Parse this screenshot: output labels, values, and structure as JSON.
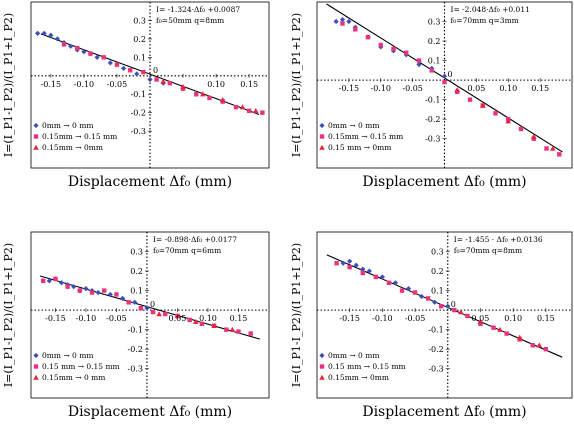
{
  "colors": {
    "series_blue": "#3f4fb8",
    "series_magenta": "#e8337f",
    "series_red": "#e8243a",
    "fit_line": "#000000",
    "axes": "#000000"
  },
  "chart_data": [
    {
      "type": "scatter",
      "panel": "top-left",
      "xlabel": "Displacement Δf₀ (mm)",
      "ylabel": "I=(I_P1-I_P2)/(I_P1+I_P2)",
      "xlim": [
        -0.18,
        0.18
      ],
      "ylim": [
        -0.5,
        0.4
      ],
      "x_ticks": [
        -0.15,
        -0.1,
        -0.05,
        0.05,
        0.1,
        0.15
      ],
      "x_tick_labels": [
        "-0.15",
        "-0.10",
        "-0.05",
        "",
        "0.10",
        "0.15"
      ],
      "y_ticks": [
        0.3,
        0.2,
        0.1,
        -0.1,
        -0.2,
        -0.3
      ],
      "y_tick_labels": [
        "0.3",
        "0.2",
        "0.1",
        "-0.1",
        "-0.2",
        "-0.3"
      ],
      "annotation": [
        "I= -1.324·Δf₀ +0.0087",
        "f₀=50mm   q=8mm"
      ],
      "zero_label": "0",
      "legend": [
        "0mm  → 0 mm",
        "0.15mm → 0.15 mm",
        "0.15mm → 0mm"
      ],
      "fit": {
        "slope": -1.324,
        "intercept": 0.0087
      },
      "series": [
        {
          "name": "0mm  → 0 mm",
          "marker": "diamond",
          "color": "#3f4fb8",
          "x": [
            -0.17,
            -0.16,
            -0.15,
            -0.14,
            -0.13,
            -0.12,
            -0.11,
            -0.1,
            -0.09,
            -0.08,
            -0.06,
            -0.04,
            -0.02,
            0.0,
            0.02
          ],
          "y": [
            0.23,
            0.23,
            0.22,
            0.2,
            0.18,
            0.16,
            0.14,
            0.13,
            0.12,
            0.1,
            0.07,
            0.04,
            0.01,
            -0.02,
            -0.04
          ]
        },
        {
          "name": "0.15mm → 0.15 mm",
          "marker": "square",
          "color": "#e8337f",
          "x": [
            -0.13,
            -0.11,
            -0.09,
            -0.07,
            -0.05,
            -0.03,
            -0.01,
            0.01,
            0.03,
            0.05,
            0.07,
            0.09,
            0.11,
            0.13,
            0.15,
            0.17
          ],
          "y": [
            0.17,
            0.15,
            0.12,
            0.1,
            0.06,
            0.03,
            0.02,
            -0.02,
            -0.04,
            -0.07,
            -0.1,
            -0.12,
            -0.14,
            -0.17,
            -0.19,
            -0.2
          ]
        },
        {
          "name": "0.15mm → 0mm",
          "marker": "triangle",
          "color": "#e8243a",
          "x": [
            0.02,
            0.05,
            0.08,
            0.11,
            0.14,
            0.16
          ],
          "y": [
            -0.03,
            -0.06,
            -0.1,
            -0.13,
            -0.17,
            -0.19
          ]
        }
      ]
    },
    {
      "type": "scatter",
      "panel": "top-right",
      "xlabel": "Displacement Δf₀ (mm)",
      "ylabel": "I=(I_P1-I_P2)/(I_P1+I_P2)",
      "xlim": [
        -0.2,
        0.2
      ],
      "ylim": [
        -0.45,
        0.4
      ],
      "x_ticks": [
        -0.15,
        -0.1,
        -0.05,
        0.05,
        0.1,
        0.15
      ],
      "x_tick_labels": [
        "-0.15",
        "-0.10",
        "-0.05",
        "0.05",
        "0.10",
        "0.15"
      ],
      "y_ticks": [
        0.3,
        0.2,
        0.1,
        -0.1,
        -0.2,
        -0.3
      ],
      "y_tick_labels": [
        "0.3",
        "0.2",
        "0.1",
        "-0.1",
        "-0.2",
        "-0.3"
      ],
      "annotation": [
        "I= -2.048·Δf₀ +0.011",
        "f₀=70mm  q=3mm"
      ],
      "zero_label": "0",
      "legend": [
        "0mm  → 0 mm",
        "0.15mm → 0.15 mm",
        "0.15 mm → 0mm"
      ],
      "fit": {
        "slope": -2.048,
        "intercept": 0.011
      },
      "series": [
        {
          "name": "0mm  → 0 mm",
          "marker": "diamond",
          "color": "#3f4fb8",
          "x": [
            -0.17,
            -0.16,
            -0.15,
            -0.14,
            -0.12,
            -0.1,
            -0.08,
            -0.06,
            -0.04,
            -0.02,
            0.0
          ],
          "y": [
            0.3,
            0.31,
            0.3,
            0.27,
            0.22,
            0.17,
            0.15,
            0.13,
            0.08,
            0.06,
            0.02
          ]
        },
        {
          "name": "0.15mm → 0.15 mm",
          "marker": "square",
          "color": "#e8337f",
          "x": [
            -0.16,
            -0.14,
            -0.12,
            -0.1,
            -0.08,
            -0.06,
            -0.04,
            -0.02,
            0.0,
            0.02,
            0.04,
            0.06,
            0.08,
            0.1,
            0.12,
            0.14,
            0.16,
            0.18
          ],
          "y": [
            0.29,
            0.26,
            0.22,
            0.18,
            0.16,
            0.14,
            0.1,
            0.05,
            -0.01,
            -0.06,
            -0.1,
            -0.13,
            -0.17,
            -0.2,
            -0.25,
            -0.3,
            -0.35,
            -0.38
          ]
        },
        {
          "name": "0.15 mm → 0mm",
          "marker": "triangle",
          "color": "#e8243a",
          "x": [
            0.02,
            0.06,
            0.1,
            0.14,
            0.17
          ],
          "y": [
            -0.05,
            -0.13,
            -0.21,
            -0.29,
            -0.35
          ]
        }
      ]
    },
    {
      "type": "scatter",
      "panel": "bottom-left",
      "xlabel": "Displacement Δf₀ (mm)",
      "ylabel": "I=(I_P1-I_P2)/(I_P1+I_P2)",
      "xlim": [
        -0.19,
        0.2
      ],
      "ylim": [
        -0.45,
        0.4
      ],
      "x_ticks": [
        -0.15,
        -0.1,
        -0.05,
        0.05,
        0.1,
        0.15
      ],
      "x_tick_labels": [
        "-0.15",
        "-0.10",
        "-0.05",
        "0.05",
        "0.10",
        "0.15"
      ],
      "y_ticks": [
        0.3,
        0.2,
        0.1,
        -0.1,
        -0.2,
        -0.3
      ],
      "y_tick_labels": [
        "0.3",
        "0.2",
        "0.1",
        "-0.1",
        "-0.2",
        "-0.3"
      ],
      "annotation": [
        "I= -0.898·Δf₀ +0.0177",
        "f₀=70mm   q=6mm"
      ],
      "zero_label": "0",
      "legend": [
        "0mm      → 0 mm",
        "0.15 mm → 0.15 mm",
        "0.15mm → 0 mm"
      ],
      "fit": {
        "slope": -0.898,
        "intercept": 0.0177
      },
      "series": [
        {
          "name": "0mm      → 0 mm",
          "marker": "diamond",
          "color": "#3f4fb8",
          "x": [
            -0.16,
            -0.15,
            -0.14,
            -0.13,
            -0.12,
            -0.11,
            -0.1,
            -0.09,
            -0.08,
            -0.06,
            -0.04,
            -0.02,
            0.0
          ],
          "y": [
            0.15,
            0.16,
            0.14,
            0.13,
            0.12,
            0.1,
            0.11,
            0.1,
            0.09,
            0.08,
            0.06,
            0.04,
            0.01
          ]
        },
        {
          "name": "0.15 mm → 0.15 mm",
          "marker": "square",
          "color": "#e8337f",
          "x": [
            -0.17,
            -0.15,
            -0.13,
            -0.11,
            -0.09,
            -0.07,
            -0.05,
            -0.03,
            -0.01,
            0.01,
            0.03,
            0.05,
            0.07,
            0.09,
            0.11,
            0.13,
            0.15,
            0.17
          ],
          "y": [
            0.15,
            0.16,
            0.12,
            0.1,
            0.09,
            0.1,
            0.08,
            0.04,
            0.01,
            -0.01,
            -0.02,
            -0.03,
            -0.05,
            -0.07,
            -0.08,
            -0.1,
            -0.11,
            -0.12
          ]
        },
        {
          "name": "0.15mm → 0 mm",
          "marker": "triangle",
          "color": "#e8243a",
          "x": [
            0.02,
            0.05,
            0.08,
            0.11,
            0.14
          ],
          "y": [
            -0.02,
            -0.03,
            -0.06,
            -0.08,
            -0.1
          ]
        }
      ]
    },
    {
      "type": "scatter",
      "panel": "bottom-right",
      "xlabel": "Displacement Δf₀ (mm)",
      "ylabel": "I=(I_P1-I_P2)/(I_P1+I_P2)",
      "xlim": [
        -0.2,
        0.19
      ],
      "ylim": [
        -0.45,
        0.4
      ],
      "x_ticks": [
        -0.15,
        -0.1,
        -0.05,
        0.05,
        0.1,
        0.15
      ],
      "x_tick_labels": [
        "-0.15",
        "-0.10",
        "-0.05",
        "0.05",
        "0.10",
        "0.15"
      ],
      "y_ticks": [
        0.3,
        0.2,
        0.1,
        -0.1,
        -0.2,
        -0.3
      ],
      "y_tick_labels": [
        "0.3",
        "0.2",
        "0.1",
        "-0.1",
        "-0.2",
        "-0.3"
      ],
      "annotation": [
        "I= -1.455 · Δf₀ +0.0136",
        "f₀=70mm   q=8mm"
      ],
      "zero_label": "0",
      "legend": [
        "0mm      → 0 mm",
        "0.15 mm → 0.15 mm",
        "0.15mm → 0mm"
      ],
      "fit": {
        "slope": -1.455,
        "intercept": 0.0136
      },
      "series": [
        {
          "name": "0mm      → 0 mm",
          "marker": "diamond",
          "color": "#3f4fb8",
          "x": [
            -0.16,
            -0.15,
            -0.14,
            -0.13,
            -0.12,
            -0.1,
            -0.08,
            -0.06,
            -0.04,
            -0.02,
            0.0
          ],
          "y": [
            0.24,
            0.25,
            0.23,
            0.21,
            0.2,
            0.17,
            0.14,
            0.11,
            0.07,
            0.04,
            0.02
          ]
        },
        {
          "name": "0.15 mm → 0.15 mm",
          "marker": "square",
          "color": "#e8337f",
          "x": [
            -0.17,
            -0.15,
            -0.13,
            -0.11,
            -0.09,
            -0.07,
            -0.05,
            -0.03,
            -0.01,
            0.01,
            0.03,
            0.05,
            0.07,
            0.09,
            0.11,
            0.13,
            0.15
          ],
          "y": [
            0.24,
            0.22,
            0.19,
            0.17,
            0.14,
            0.1,
            0.09,
            0.06,
            0.02,
            0.0,
            -0.03,
            -0.07,
            -0.09,
            -0.12,
            -0.15,
            -0.18,
            -0.2
          ]
        },
        {
          "name": "0.15mm → 0mm",
          "marker": "triangle",
          "color": "#e8243a",
          "x": [
            0.02,
            0.05,
            0.08,
            0.11,
            0.14
          ],
          "y": [
            -0.01,
            -0.06,
            -0.1,
            -0.14,
            -0.18
          ]
        }
      ]
    }
  ]
}
